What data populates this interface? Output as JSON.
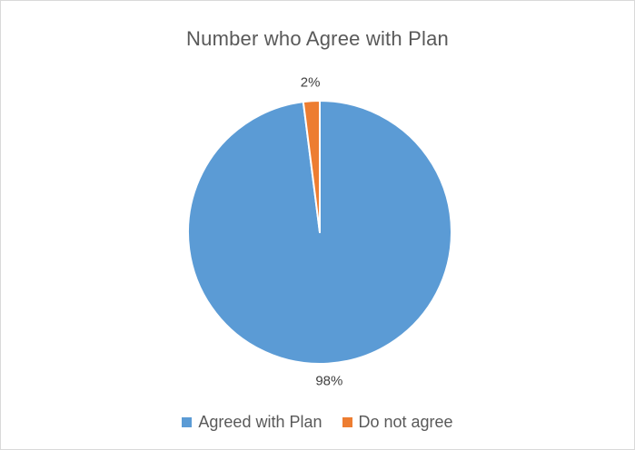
{
  "chart_data": {
    "type": "pie",
    "title": "Number who Agree with Plan",
    "categories": [
      "Agreed with Plan",
      "Do not agree"
    ],
    "values": [
      98,
      2
    ],
    "data_labels": [
      "98%",
      "2%"
    ],
    "colors": [
      "#5b9bd5",
      "#ed7d31"
    ],
    "legend_position": "bottom"
  }
}
